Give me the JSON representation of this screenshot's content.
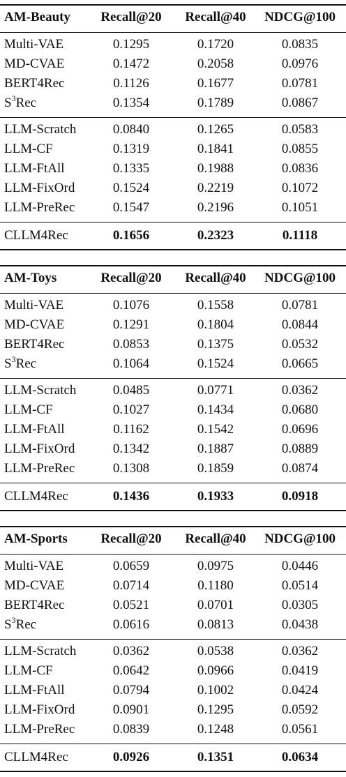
{
  "columns": [
    "Recall@20",
    "Recall@40",
    "NDCG@100"
  ],
  "tables": [
    {
      "dataset": "AM-Beauty",
      "baselines": [
        {
          "method_base": "Multi-VAE",
          "method_sup": "",
          "method_tail": "",
          "values": [
            "0.1295",
            "0.1720",
            "0.0835"
          ]
        },
        {
          "method_base": "MD-CVAE",
          "method_sup": "",
          "method_tail": "",
          "values": [
            "0.1472",
            "0.2058",
            "0.0976"
          ]
        },
        {
          "method_base": "BERT4Rec",
          "method_sup": "",
          "method_tail": "",
          "values": [
            "0.1126",
            "0.1677",
            "0.0781"
          ]
        },
        {
          "method_base": "S",
          "method_sup": "3",
          "method_tail": "Rec",
          "values": [
            "0.1354",
            "0.1789",
            "0.0867"
          ]
        }
      ],
      "llm": [
        {
          "method": "LLM-Scratch",
          "values": [
            "0.0840",
            "0.1265",
            "0.0583"
          ]
        },
        {
          "method": "LLM-CF",
          "values": [
            "0.1319",
            "0.1841",
            "0.0855"
          ]
        },
        {
          "method": "LLM-FtAll",
          "values": [
            "0.1335",
            "0.1988",
            "0.0836"
          ]
        },
        {
          "method": "LLM-FixOrd",
          "values": [
            "0.1524",
            "0.2219",
            "0.1072"
          ]
        },
        {
          "method": "LLM-PreRec",
          "values": [
            "0.1547",
            "0.2196",
            "0.1051"
          ]
        }
      ],
      "ours": {
        "method": "CLLM4Rec",
        "values": [
          "0.1656",
          "0.2323",
          "0.1118"
        ]
      }
    },
    {
      "dataset": "AM-Toys",
      "baselines": [
        {
          "method_base": "Multi-VAE",
          "method_sup": "",
          "method_tail": "",
          "values": [
            "0.1076",
            "0.1558",
            "0.0781"
          ]
        },
        {
          "method_base": "MD-CVAE",
          "method_sup": "",
          "method_tail": "",
          "values": [
            "0.1291",
            "0.1804",
            "0.0844"
          ]
        },
        {
          "method_base": "BERT4Rec",
          "method_sup": "",
          "method_tail": "",
          "values": [
            "0.0853",
            "0.1375",
            "0.0532"
          ]
        },
        {
          "method_base": "S",
          "method_sup": "3",
          "method_tail": "Rec",
          "values": [
            "0.1064",
            "0.1524",
            "0.0665"
          ]
        }
      ],
      "llm": [
        {
          "method": "LLM-Scratch",
          "values": [
            "0.0485",
            "0.0771",
            "0.0362"
          ]
        },
        {
          "method": "LLM-CF",
          "values": [
            "0.1027",
            "0.1434",
            "0.0680"
          ]
        },
        {
          "method": "LLM-FtAll",
          "values": [
            "0.1162",
            "0.1542",
            "0.0696"
          ]
        },
        {
          "method": "LLM-FixOrd",
          "values": [
            "0.1342",
            "0.1887",
            "0.0889"
          ]
        },
        {
          "method": "LLM-PreRec",
          "values": [
            "0.1308",
            "0.1859",
            "0.0874"
          ]
        }
      ],
      "ours": {
        "method": "CLLM4Rec",
        "values": [
          "0.1436",
          "0.1933",
          "0.0918"
        ]
      }
    },
    {
      "dataset": "AM-Sports",
      "baselines": [
        {
          "method_base": "Multi-VAE",
          "method_sup": "",
          "method_tail": "",
          "values": [
            "0.0659",
            "0.0975",
            "0.0446"
          ]
        },
        {
          "method_base": "MD-CVAE",
          "method_sup": "",
          "method_tail": "",
          "values": [
            "0.0714",
            "0.1180",
            "0.0514"
          ]
        },
        {
          "method_base": "BERT4Rec",
          "method_sup": "",
          "method_tail": "",
          "values": [
            "0.0521",
            "0.0701",
            "0.0305"
          ]
        },
        {
          "method_base": "S",
          "method_sup": "3",
          "method_tail": "Rec",
          "values": [
            "0.0616",
            "0.0813",
            "0.0438"
          ]
        }
      ],
      "llm": [
        {
          "method": "LLM-Scratch",
          "values": [
            "0.0362",
            "0.0538",
            "0.0362"
          ]
        },
        {
          "method": "LLM-CF",
          "values": [
            "0.0642",
            "0.0966",
            "0.0419"
          ]
        },
        {
          "method": "LLM-FtAll",
          "values": [
            "0.0794",
            "0.1002",
            "0.0424"
          ]
        },
        {
          "method": "LLM-FixOrd",
          "values": [
            "0.0901",
            "0.1295",
            "0.0592"
          ]
        },
        {
          "method": "LLM-PreRec",
          "values": [
            "0.0839",
            "0.1248",
            "0.0561"
          ]
        }
      ],
      "ours": {
        "method": "CLLM4Rec",
        "values": [
          "0.0926",
          "0.1351",
          "0.0634"
        ]
      }
    }
  ]
}
